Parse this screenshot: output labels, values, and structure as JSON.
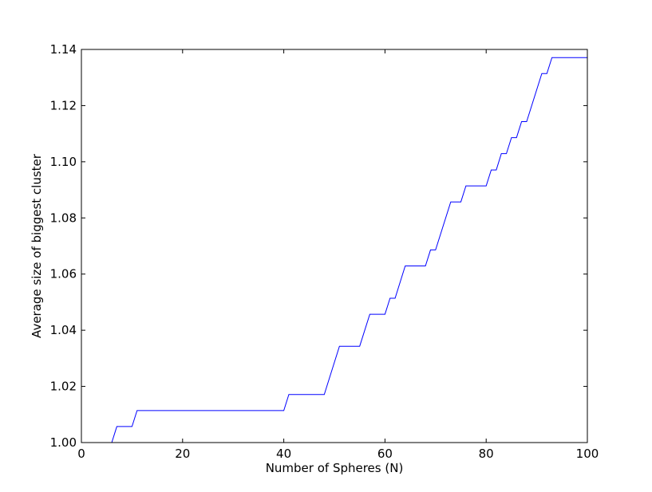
{
  "chart_data": {
    "type": "line",
    "title": "",
    "xlabel": "Number of Spheres (N)",
    "ylabel": "Average size of biggest cluster",
    "xlim": [
      0,
      100
    ],
    "ylim": [
      1.0,
      1.14
    ],
    "x_ticks": [
      "0",
      "20",
      "40",
      "60",
      "80",
      "100"
    ],
    "y_ticks": [
      "1.00",
      "1.02",
      "1.04",
      "1.06",
      "1.08",
      "1.10",
      "1.12",
      "1.14"
    ],
    "grid": false,
    "line_color": "#0000ff",
    "series": [
      {
        "x": [
          1,
          6,
          7,
          10,
          11,
          40,
          41,
          48,
          51,
          55,
          57,
          60,
          61,
          62,
          64,
          68,
          69,
          70,
          73,
          75,
          76,
          80,
          81,
          82,
          83,
          84,
          85,
          86,
          87,
          88,
          91,
          92,
          93,
          100
        ],
        "y": [
          1.0,
          1.0,
          1.0057,
          1.0057,
          1.0114,
          1.0114,
          1.0171,
          1.0171,
          1.0343,
          1.0343,
          1.0457,
          1.0457,
          1.0514,
          1.0514,
          1.0629,
          1.0629,
          1.0686,
          1.0686,
          1.0857,
          1.0857,
          1.0914,
          1.0914,
          1.0971,
          1.0971,
          1.1029,
          1.1029,
          1.1086,
          1.1086,
          1.1143,
          1.1143,
          1.1314,
          1.1314,
          1.1371,
          1.1371
        ]
      }
    ]
  }
}
